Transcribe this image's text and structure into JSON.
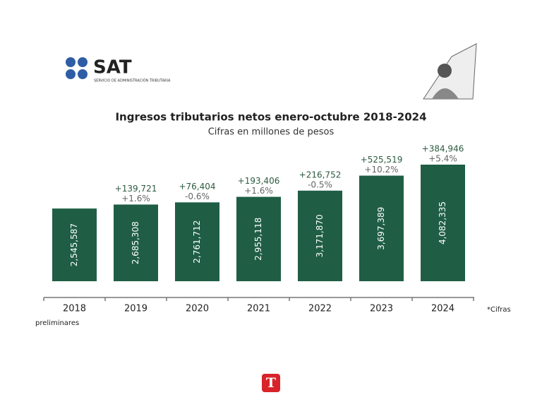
{
  "logo": {
    "name": "SAT",
    "subtitle": "SERVICIO DE ADMINISTRACIÓN TRIBUTARIA"
  },
  "brand": "T",
  "chart_data": {
    "type": "bar",
    "title": "Ingresos tributarios netos enero-octubre 2018-2024",
    "subtitle": "Cifras en millones de pesos",
    "categories": [
      "2018",
      "2019",
      "2020",
      "2021",
      "2022",
      "2023",
      "2024"
    ],
    "values": [
      2545587,
      2685308,
      2761712,
      2955118,
      3171870,
      3697389,
      4082335
    ],
    "value_labels": [
      "2,545,587",
      "2,685,308",
      "2,761,712",
      "2,955,118",
      "3,171,870",
      "3,697,389",
      "4,082,335"
    ],
    "change_amounts": [
      null,
      "+139,721",
      "+76,404",
      "+193,406",
      "+216,752",
      "+525,519",
      "+384,946"
    ],
    "change_percents": [
      null,
      "+1.6%",
      "-0.6%",
      "+1.6%",
      "-0.5%",
      "+10.2%",
      "+5.4%"
    ],
    "color": "#1f5e45",
    "footnote": [
      "*Cifras",
      "preliminares"
    ]
  }
}
